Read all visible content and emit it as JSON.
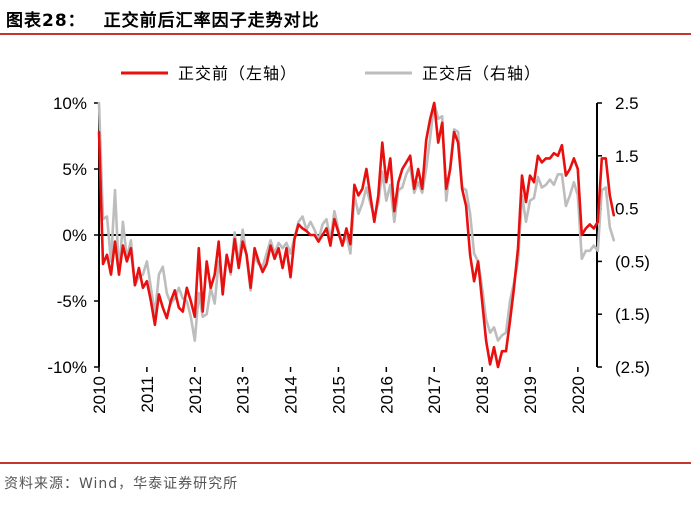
{
  "header": {
    "figure_label": "图表28：",
    "title": "正交前后汇率因子走势对比"
  },
  "source": "资料来源：Wind，华泰证券研究所",
  "colors": {
    "accent": "#c0392b",
    "series_before": "#e8100f",
    "series_after": "#bdbdbd"
  },
  "chart_data": {
    "type": "line",
    "title": "正交前后汇率因子走势对比",
    "x_start": 2010.0,
    "x_step": 0.0833333,
    "xlim": [
      2010.0,
      2020.4
    ],
    "x_ticks": [
      "2010",
      "2011",
      "2012",
      "2013",
      "2014",
      "2015",
      "2016",
      "2017",
      "2018",
      "2019",
      "2020"
    ],
    "y_left": {
      "lim": [
        -10,
        10
      ],
      "ticks": [
        10,
        5,
        0,
        -5,
        -10
      ],
      "tick_labels": [
        "10%",
        "5%",
        "0%",
        "-5%",
        "-10%"
      ]
    },
    "y_right": {
      "lim": [
        -2.5,
        2.5
      ],
      "ticks": [
        2.5,
        1.5,
        0.5,
        -0.5,
        -1.5,
        -2.5
      ],
      "tick_labels": [
        "2.5",
        "1.5",
        "0.5",
        "(0.5)",
        "(1.5)",
        "(2.5)"
      ]
    },
    "series": [
      {
        "name": "正交前（左轴）",
        "axis": "left",
        "values": [
          7.8,
          -2.2,
          -1.5,
          -3.0,
          -0.5,
          -3.0,
          -0.8,
          -2.0,
          -1.0,
          -3.8,
          -2.5,
          -4.0,
          -3.5,
          -5.0,
          -6.8,
          -4.5,
          -5.5,
          -6.3,
          -5.0,
          -4.2,
          -5.5,
          -5.8,
          -4.0,
          -5.0,
          -6.2,
          -1.0,
          -5.8,
          -2.0,
          -4.0,
          -3.0,
          -0.5,
          -4.5,
          -1.5,
          -2.8,
          -0.3,
          -2.5,
          -0.5,
          -1.5,
          -4.0,
          -1.0,
          -2.0,
          -2.8,
          -2.2,
          -0.8,
          -1.8,
          -1.0,
          -2.5,
          -1.0,
          -3.2,
          -0.3,
          0.8,
          0.5,
          0.3,
          0.0,
          0.0,
          -0.5,
          0.0,
          0.5,
          -0.8,
          1.2,
          0.2,
          -0.8,
          0.5,
          -0.7,
          3.8,
          3.0,
          3.5,
          5.0,
          3.0,
          1.0,
          3.0,
          7.0,
          4.0,
          5.8,
          1.8,
          4.0,
          5.0,
          5.5,
          6.0,
          3.5,
          5.0,
          3.5,
          7.2,
          8.8,
          10.0,
          7.0,
          8.5,
          3.5,
          5.0,
          7.8,
          7.0,
          3.5,
          2.2,
          -1.5,
          -3.5,
          -2.0,
          -5.0,
          -8.0,
          -9.8,
          -8.5,
          -10.0,
          -8.8,
          -8.8,
          -6.5,
          -4.0,
          -1.0,
          4.5,
          2.5,
          4.5,
          4.0,
          6.0,
          5.5,
          5.8,
          5.8,
          6.2,
          6.0,
          6.8,
          4.5,
          5.0,
          5.8,
          5.0,
          0.0,
          0.5,
          0.8,
          0.5,
          1.0,
          5.8,
          5.8,
          3.0,
          1.5
        ]
      },
      {
        "name": "正交后（右轴）",
        "axis": "right",
        "values": [
          2.5,
          0.3,
          0.35,
          -0.5,
          0.85,
          -0.75,
          0.25,
          -0.45,
          -0.1,
          -0.95,
          -0.8,
          -0.75,
          -0.5,
          -1.0,
          -1.5,
          -0.75,
          -0.6,
          -1.1,
          -1.3,
          -1.2,
          -1.0,
          -1.2,
          -1.25,
          -1.55,
          -2.0,
          -1.1,
          -1.55,
          -1.5,
          -1.0,
          -1.3,
          -0.5,
          -1.0,
          -0.4,
          -0.75,
          0.05,
          -0.55,
          0.1,
          -0.4,
          -1.05,
          -0.4,
          -0.55,
          -0.6,
          -0.35,
          -0.1,
          -0.35,
          -0.15,
          -0.25,
          -0.15,
          -0.35,
          -0.05,
          0.25,
          0.35,
          0.1,
          0.25,
          0.1,
          -0.1,
          0.2,
          0.3,
          -0.1,
          0.45,
          0.1,
          -0.2,
          0.0,
          -0.35,
          0.75,
          0.4,
          0.6,
          0.9,
          0.6,
          0.35,
          0.6,
          1.2,
          0.65,
          0.95,
          0.25,
          0.85,
          0.9,
          1.15,
          1.3,
          0.8,
          1.0,
          0.8,
          1.25,
          1.85,
          2.5,
          2.2,
          2.25,
          0.65,
          1.3,
          2.0,
          1.95,
          0.9,
          0.85,
          0.4,
          -0.35,
          -0.5,
          -1.0,
          -1.6,
          -1.85,
          -1.75,
          -2.0,
          -1.9,
          -1.85,
          -1.25,
          -0.9,
          -0.5,
          0.75,
          0.25,
          0.65,
          0.7,
          1.1,
          0.9,
          0.95,
          1.05,
          0.95,
          1.15,
          1.15,
          0.55,
          0.75,
          1.0,
          0.75,
          -0.45,
          -0.3,
          -0.3,
          -0.2,
          -0.3,
          0.85,
          0.9,
          0.15,
          -0.1
        ]
      }
    ]
  }
}
